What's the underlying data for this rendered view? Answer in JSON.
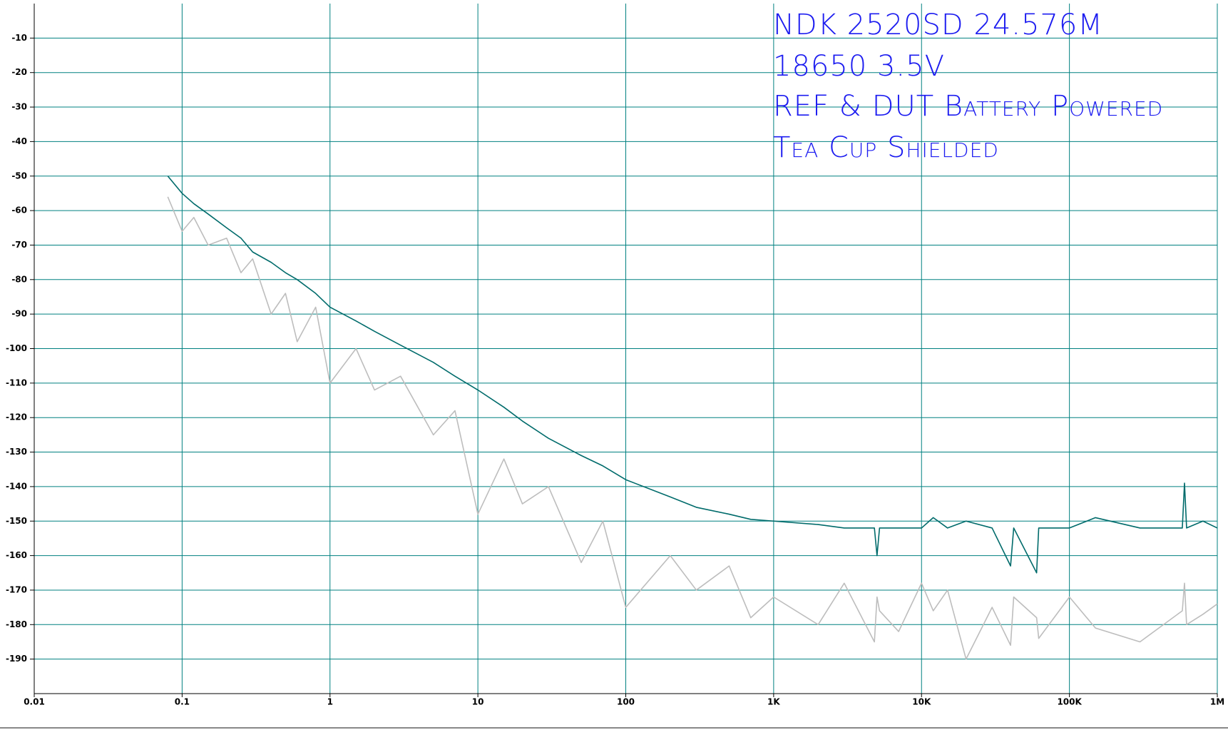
{
  "chart_data": {
    "type": "line",
    "annotations": [
      "NDK 2520SD 24.576M",
      "18650 3.5V",
      "REF & DUT Battery Powered",
      "Tea Cup Shielded"
    ],
    "x": [
      0.08,
      0.1,
      0.12,
      0.15,
      0.2,
      0.25,
      0.3,
      0.4,
      0.5,
      0.6,
      0.8,
      1,
      1.5,
      2,
      3,
      5,
      7,
      10,
      15,
      20,
      30,
      50,
      70,
      100,
      200,
      300,
      500,
      700,
      1000,
      2000,
      3000,
      4800,
      5000,
      5200,
      7000,
      10000,
      12000,
      15000,
      20000,
      30000,
      40000,
      42000,
      60000,
      62000,
      100000,
      150000,
      300000,
      580000,
      600000,
      620000,
      800000,
      1000000
    ],
    "series": [
      {
        "color": "#bdbdbd",
        "values": [
          -56,
          -66,
          -62,
          -70,
          -68,
          -78,
          -74,
          -90,
          -84,
          -98,
          -88,
          -110,
          -100,
          -112,
          -108,
          -125,
          -118,
          -148,
          -132,
          -145,
          -140,
          -162,
          -150,
          -175,
          -160,
          -170,
          -163,
          -178,
          -172,
          -180,
          -168,
          -185,
          -172,
          -176,
          -182,
          -168,
          -176,
          -170,
          -190,
          -175,
          -186,
          -172,
          -178,
          -184,
          -172,
          -181,
          -185,
          -176,
          -168,
          -180,
          -177,
          -174
        ]
      },
      {
        "color": "#006b6b",
        "values": [
          -50,
          -55,
          -58,
          -61,
          -65,
          -68,
          -72,
          -75,
          -78,
          -80,
          -84,
          -88,
          -92,
          -95,
          -99,
          -104,
          -108,
          -112,
          -117,
          -121,
          -126,
          -131,
          -134,
          -138,
          -143,
          -146,
          -148,
          -149.5,
          -150,
          -151,
          -152,
          -152,
          -160,
          -152,
          -152,
          -152,
          -149,
          -152,
          -150,
          -152,
          -163,
          -152,
          -165,
          -152,
          -152,
          -149,
          -152,
          -152,
          -139,
          -152,
          -150,
          -152
        ]
      }
    ],
    "log_x": true,
    "grid": true,
    "grid_color": "#008080",
    "xlim": [
      0.01,
      1000000
    ],
    "xticks": [
      0.01,
      0.1,
      1,
      10,
      100,
      {
        "value": 1000,
        "label": "1K"
      },
      {
        "value": 10000,
        "label": "10K"
      },
      {
        "value": 100000,
        "label": "100K"
      },
      {
        "value": 1000000,
        "label": "1M"
      }
    ],
    "ylim": [
      -200,
      0
    ],
    "yticks": [
      -10,
      -20,
      -30,
      -40,
      -50,
      -60,
      -70,
      -80,
      -90,
      -100,
      -110,
      -120,
      -130,
      -140,
      -150,
      -160,
      -170,
      -180,
      -190
    ]
  }
}
